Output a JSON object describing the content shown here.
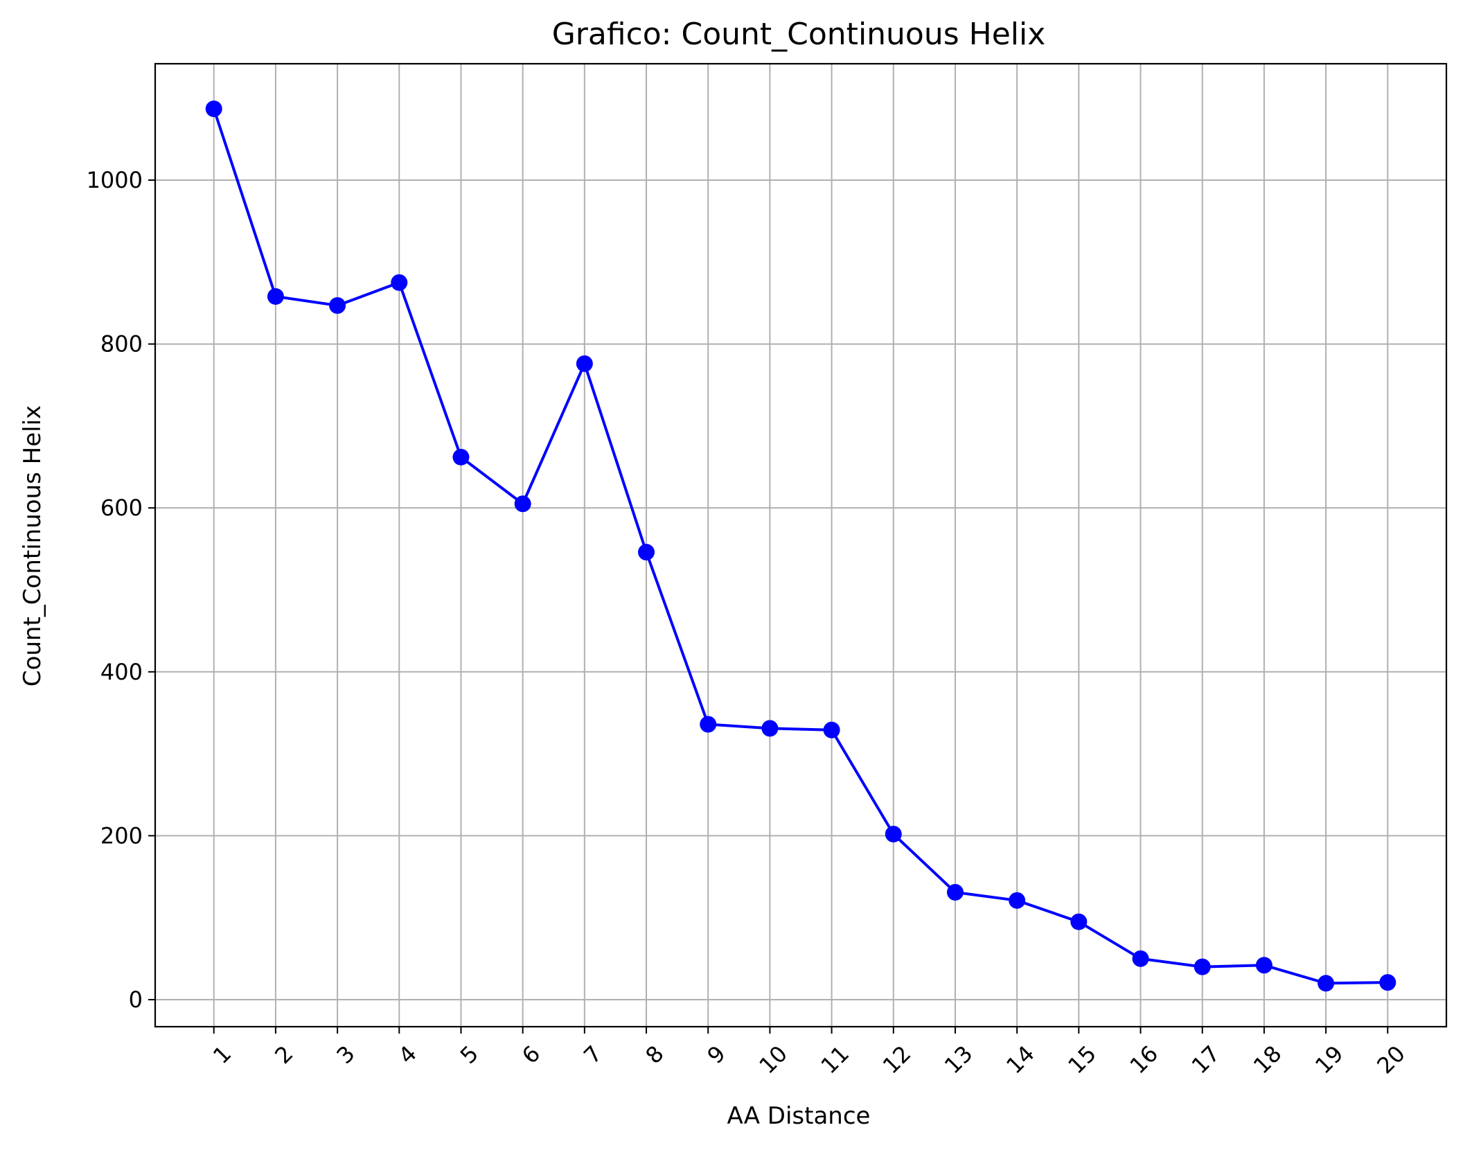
{
  "chart_data": {
    "type": "line",
    "title": "Grafico: Count_Continuous Helix",
    "xlabel": "AA Distance",
    "ylabel": "Count_Continuous Helix",
    "x": [
      1,
      2,
      3,
      4,
      5,
      6,
      7,
      8,
      9,
      10,
      11,
      12,
      13,
      14,
      15,
      16,
      17,
      18,
      19,
      20
    ],
    "x_tick_labels": [
      "1",
      "2",
      "3",
      "4",
      "5",
      "6",
      "7",
      "8",
      "9",
      "10",
      "11",
      "12",
      "13",
      "14",
      "15",
      "16",
      "17",
      "18",
      "19",
      "20"
    ],
    "series": [
      {
        "values": [
          1087,
          858,
          847,
          875,
          662,
          605,
          776,
          546,
          336,
          331,
          329,
          202,
          131,
          121,
          95,
          50,
          40,
          42,
          20,
          21
        ],
        "color": "#0000ff",
        "marker": "circle"
      }
    ],
    "xlim": [
      0.05,
      20.95
    ],
    "ylim": [
      -33,
      1142
    ],
    "y_ticks": [
      0,
      200,
      400,
      600,
      800,
      1000
    ],
    "grid": true,
    "x_tick_rotation": 45
  }
}
